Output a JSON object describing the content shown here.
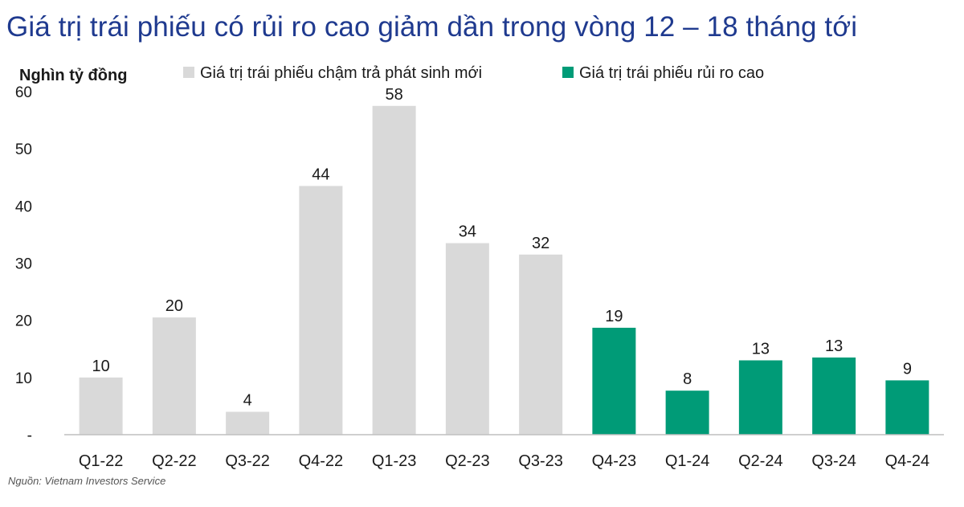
{
  "title": "Giá trị trái phiếu có rủi ro cao giảm dần trong vòng 12 – 18 tháng tới",
  "source": "Nguồn: Vietnam Investors Service",
  "chart_data": {
    "type": "bar",
    "ylabel": "Nghìn tỷ đồng",
    "ylim": [
      0,
      60
    ],
    "yticks": [
      0,
      10,
      20,
      30,
      40,
      50,
      60
    ],
    "ytick_labels": [
      "-",
      "10",
      "20",
      "30",
      "40",
      "50",
      "60"
    ],
    "grid": false,
    "legend_position": "top",
    "categories": [
      "Q1-22",
      "Q2-22",
      "Q3-22",
      "Q4-22",
      "Q1-23",
      "Q2-23",
      "Q3-23",
      "Q4-23",
      "Q1-24",
      "Q2-24",
      "Q3-24",
      "Q4-24"
    ],
    "series": [
      {
        "name": "Giá trị trái phiếu chậm trả phát sinh mới",
        "color": "#d9d9d9",
        "values": [
          10,
          20.5,
          4,
          43.5,
          57.5,
          33.5,
          31.5,
          null,
          null,
          null,
          null,
          null
        ],
        "labels": [
          "10",
          "20",
          "4",
          "44",
          "58",
          "34",
          "32",
          "",
          "",
          "",
          "",
          ""
        ]
      },
      {
        "name": "Giá trị trái phiếu rủi ro cao",
        "color": "#009b77",
        "values": [
          null,
          null,
          null,
          null,
          null,
          null,
          null,
          18.7,
          7.7,
          13,
          13.5,
          9.5
        ],
        "labels": [
          "",
          "",
          "",
          "",
          "",
          "",
          "",
          "19",
          "8",
          "13",
          "13",
          "9"
        ]
      }
    ]
  }
}
